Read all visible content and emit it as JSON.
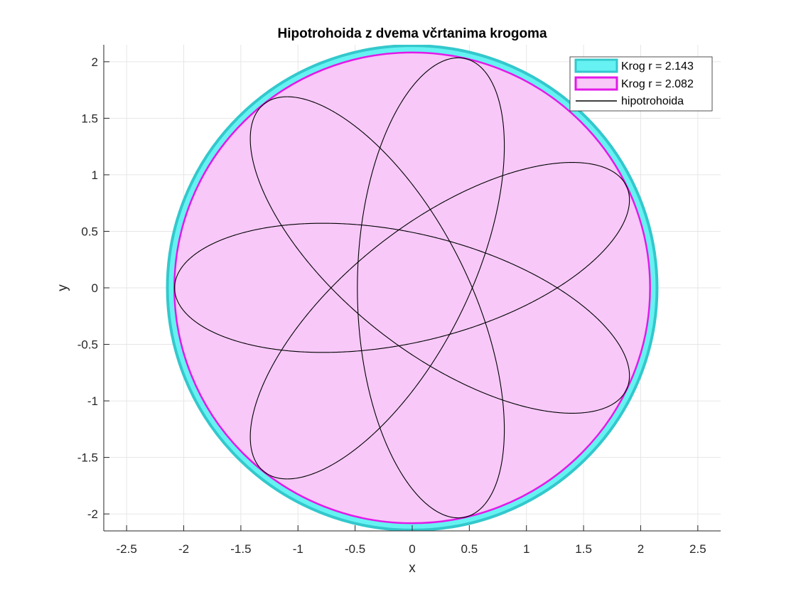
{
  "chart_data": {
    "type": "line",
    "title": "Hipotrohoida z dvema včrtanima krogoma",
    "xlabel": "x",
    "ylabel": "y",
    "xlim": [
      -2.7,
      2.7
    ],
    "ylim": [
      -2.15,
      2.15
    ],
    "xticks": [
      -2.5,
      -2,
      -1.5,
      -1,
      -0.5,
      0,
      0.5,
      1,
      1.5,
      2,
      2.5
    ],
    "xtick_labels": [
      "-2.5",
      "-2",
      "-1.5",
      "-1",
      "-0.5",
      "0",
      "0.5",
      "1",
      "1.5",
      "2",
      "2.5"
    ],
    "yticks": [
      -2,
      -1.5,
      -1,
      -0.5,
      0,
      0.5,
      1,
      1.5,
      2
    ],
    "ytick_labels": [
      "-2",
      "-1.5",
      "-1",
      "-0.5",
      "0",
      "0.5",
      "1",
      "1.5",
      "2"
    ],
    "grid": true,
    "legend_position": "top-right",
    "series": [
      {
        "name": "Krog r = 2.143",
        "kind": "filled-circle",
        "center": [
          0,
          0
        ],
        "radius": 2.143,
        "fill": "#66f2f2",
        "edge": "#33c8cc"
      },
      {
        "name": "Krog r = 2.082",
        "kind": "filled-circle",
        "center": [
          0,
          0
        ],
        "radius": 2.082,
        "fill": "#f7c8f8",
        "edge": "#e21ae8"
      },
      {
        "name": "hipotrohoida",
        "kind": "hypotrochoid",
        "R": 1.4,
        "r": 0.6,
        "d": 1.28,
        "rotation_deg": 180,
        "color": "#000000"
      }
    ]
  },
  "colors": {
    "axis": "#262626",
    "grid": "#e6e6e6"
  }
}
